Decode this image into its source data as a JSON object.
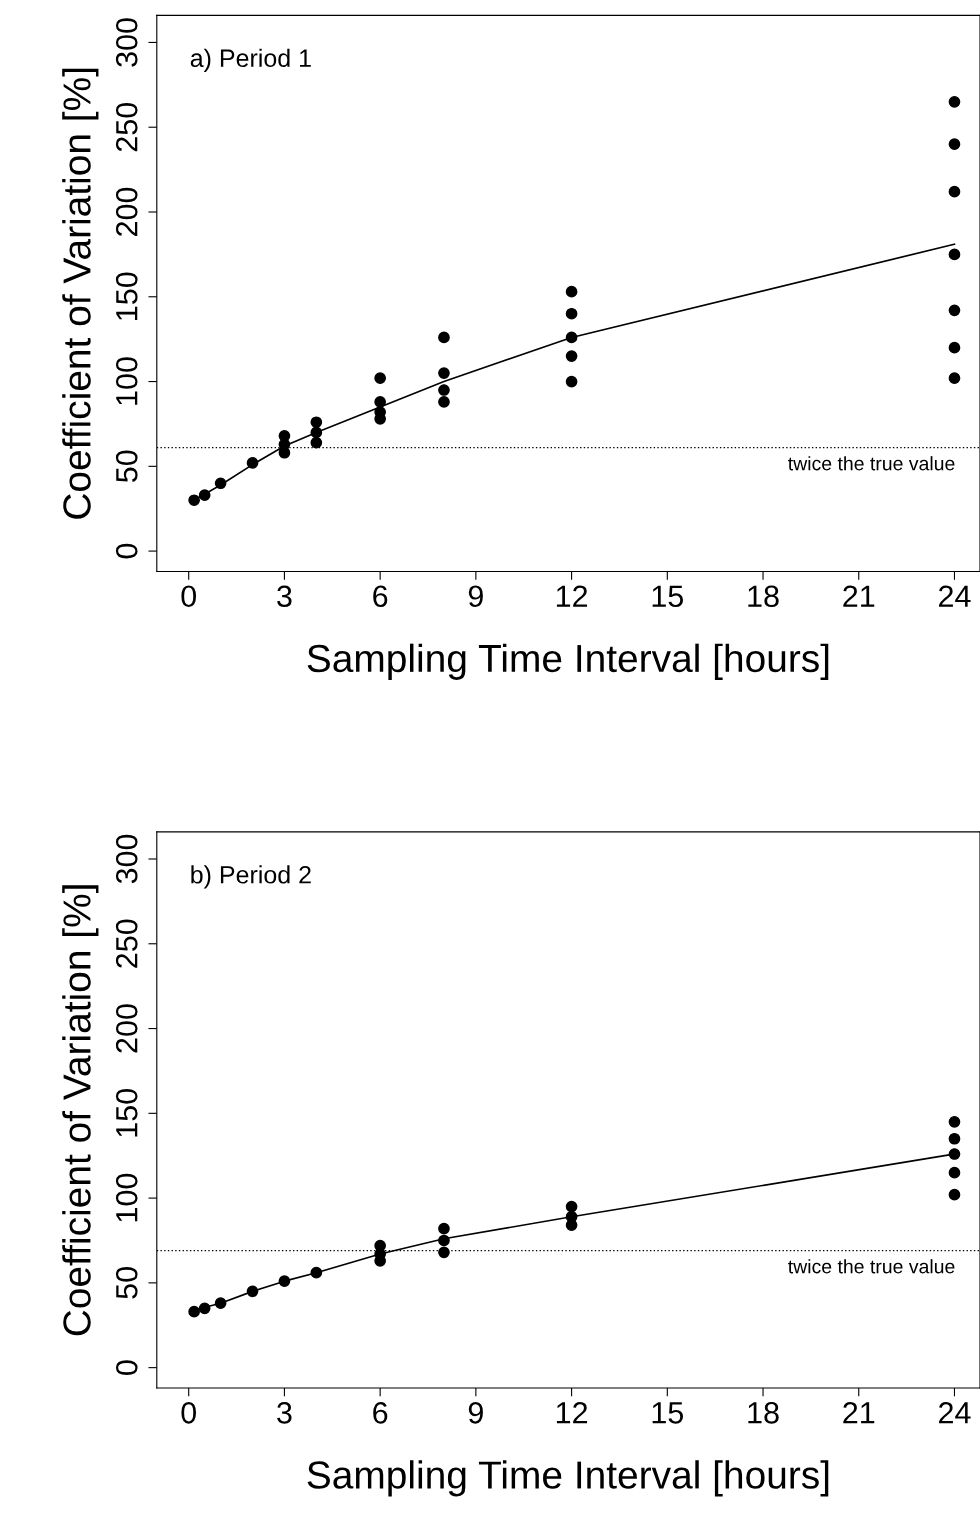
{
  "chart_data": [
    {
      "type": "scatter",
      "xlabel": "Sampling Time Interval [hours]",
      "ylabel": "Coefficient of Variation [%]",
      "annotations": [
        "a) Period 1"
      ],
      "xlim": [
        -1,
        24.8
      ],
      "ylim": [
        -12,
        316
      ],
      "xticks": [
        0,
        3,
        6,
        9,
        12,
        15,
        18,
        21,
        24
      ],
      "yticks": [
        0,
        50,
        100,
        150,
        200,
        250,
        300
      ],
      "marker": "circle",
      "grid": false,
      "legend": false,
      "ref_lines": [
        {
          "axis": "y",
          "value": 61,
          "label": "twice the true value",
          "line_style": "dotted",
          "color": "#000000"
        }
      ],
      "series": [
        {
          "color": "#000000",
          "x": [
            0.17,
            0.5,
            1,
            2,
            3,
            3,
            3,
            4,
            4,
            4,
            6,
            6,
            6,
            6,
            8,
            8,
            8,
            8,
            12,
            12,
            12,
            12,
            12,
            24,
            24,
            24,
            24,
            24,
            24,
            24
          ],
          "values": [
            30,
            33,
            40,
            52,
            58,
            63,
            68,
            64,
            70,
            76,
            78,
            82,
            88,
            102,
            88,
            95,
            105,
            126,
            100,
            115,
            126,
            140,
            153,
            102,
            120,
            142,
            175,
            212,
            240,
            265
          ]
        },
        {
          "type": "line",
          "color": "#000000",
          "line_style": "solid",
          "marker": "none",
          "x": [
            0.17,
            1,
            2,
            3,
            4,
            6,
            8,
            12,
            24
          ],
          "values": [
            30,
            39,
            51,
            62,
            70,
            85,
            100,
            126,
            181
          ]
        }
      ]
    },
    {
      "type": "scatter",
      "xlabel": "Sampling Time Interval [hours]",
      "ylabel": "Coefficient of Variation [%]",
      "annotations": [
        "b) Period 2"
      ],
      "xlim": [
        -1,
        24.8
      ],
      "ylim": [
        -12,
        316
      ],
      "xticks": [
        0,
        3,
        6,
        9,
        12,
        15,
        18,
        21,
        24
      ],
      "yticks": [
        0,
        50,
        100,
        150,
        200,
        250,
        300
      ],
      "marker": "circle",
      "grid": false,
      "legend": false,
      "ref_lines": [
        {
          "axis": "y",
          "value": 69,
          "label": "twice the true value",
          "line_style": "dotted",
          "color": "#000000"
        }
      ],
      "series": [
        {
          "color": "#000000",
          "x": [
            0.17,
            0.5,
            1,
            2,
            3,
            4,
            6,
            6,
            6,
            8,
            8,
            8,
            12,
            12,
            12,
            24,
            24,
            24,
            24,
            24
          ],
          "values": [
            33,
            35,
            38,
            45,
            51,
            56,
            63,
            67,
            72,
            68,
            75,
            82,
            84,
            89,
            95,
            102,
            115,
            126,
            135,
            145
          ]
        },
        {
          "type": "line",
          "color": "#000000",
          "line_style": "solid",
          "marker": "none",
          "x": [
            0.17,
            1,
            2,
            3,
            4,
            6,
            8,
            12,
            24
          ],
          "values": [
            34,
            38,
            45,
            51,
            56,
            67,
            76,
            89,
            126
          ]
        }
      ]
    }
  ]
}
